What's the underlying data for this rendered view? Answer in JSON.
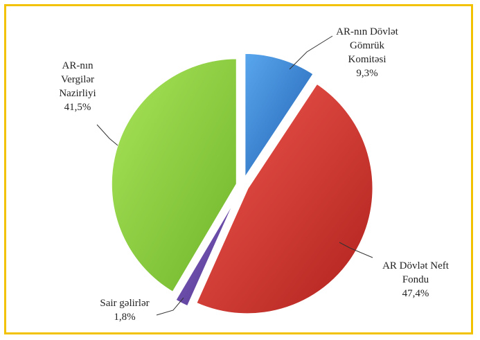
{
  "chart_data": {
    "type": "pie",
    "title": "",
    "categories": [
      "AR-nın Dövlət Gömrük Komitəsi",
      "AR Dövlət Neft Fondu",
      "Sair gəlirlər",
      "AR-nın Vergilər Nazirliyi"
    ],
    "values": [
      9.3,
      47.4,
      1.8,
      41.5
    ],
    "colors": [
      "#2f7fd2",
      "#d6302b",
      "#6a4aa8",
      "#8fd13f"
    ],
    "labels": [
      {
        "lines": [
          "AR-nın Dövlət",
          "Gömrük",
          "Komitəsi",
          "9,3%"
        ]
      },
      {
        "lines": [
          "AR Dövlət Neft",
          "Fondu",
          "47,4%"
        ]
      },
      {
        "lines": [
          "Sair gəlirlər",
          "1,8%"
        ]
      },
      {
        "lines": [
          "AR-nın",
          "Vergilər",
          "Nazirliyi",
          "41,5%"
        ]
      }
    ]
  }
}
